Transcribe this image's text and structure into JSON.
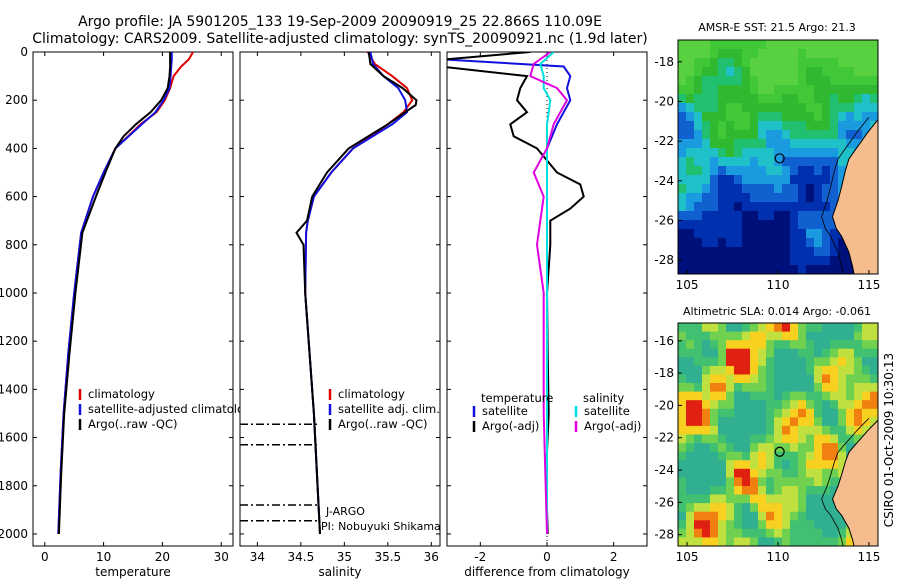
{
  "header": {
    "line1": "Argo profile: JA 5901205_133 19-Sep-2009 20090919_25 22.866S 110.09E",
    "line2": "Climatology: CARS2009. Satellite-adjusted climatology: synTS_20090921.nc (1.9d later)"
  },
  "side_label": "CSIRO 01-Oct-2009 10:30:13",
  "colors": {
    "climatology": "#e00000",
    "satellite": "#1010e0",
    "argo": "#000000",
    "salinity_sat": "#00e0e0",
    "salinity_adj": "#e000e0",
    "land": "#f5bc8e"
  },
  "chart_data": [
    {
      "type": "line",
      "id": "temperature",
      "xlabel": "temperature",
      "ylabel": "",
      "xlim": [
        -2,
        32
      ],
      "ylim": [
        2050,
        0
      ],
      "xticks": [
        0,
        10,
        20,
        30
      ],
      "yticks": [
        0,
        200,
        400,
        600,
        800,
        1000,
        1200,
        1400,
        1600,
        1800,
        2000
      ],
      "legend": {
        "placement": "lower-middle",
        "entries": [
          "climatology",
          "satellite-adjusted climatology",
          "Argo(..raw -QC)"
        ]
      },
      "series": [
        {
          "name": "climatology",
          "color": "#e00000",
          "y": [
            0,
            30,
            60,
            100,
            150,
            200,
            250,
            300,
            400,
            500,
            600,
            750,
            1000,
            1250,
            1500,
            1750,
            2000
          ],
          "x": [
            25.2,
            24.5,
            23.2,
            21.9,
            21.3,
            20.4,
            19.0,
            16.3,
            12.0,
            10.0,
            8.2,
            6.2,
            5.0,
            4.0,
            3.2,
            2.7,
            2.3
          ]
        },
        {
          "name": "satellite-adjusted climatology",
          "color": "#1010e0",
          "y": [
            0,
            30,
            60,
            100,
            150,
            200,
            250,
            300,
            400,
            500,
            600,
            750,
            1000,
            1250,
            1500,
            1750,
            2000
          ],
          "x": [
            21.6,
            21.6,
            21.5,
            21.4,
            21.2,
            20.2,
            18.8,
            16.5,
            12.0,
            10.0,
            8.2,
            6.2,
            5.0,
            4.0,
            3.2,
            2.7,
            2.3
          ]
        },
        {
          "name": "Argo(..raw -QC)",
          "color": "#000000",
          "y": [
            0,
            30,
            60,
            100,
            150,
            200,
            250,
            300,
            350,
            400,
            500,
            600,
            750,
            1000,
            1250,
            1500,
            1750,
            2000
          ],
          "x": [
            21.3,
            21.3,
            21.3,
            21.2,
            20.9,
            19.8,
            18.0,
            15.5,
            13.4,
            12.0,
            10.3,
            8.7,
            6.4,
            5.2,
            4.2,
            3.3,
            2.8,
            2.4
          ]
        }
      ]
    },
    {
      "type": "line",
      "id": "salinity",
      "xlabel": "salinity",
      "ylabel": "",
      "xlim": [
        33.8,
        36.1
      ],
      "ylim": [
        2050,
        0
      ],
      "xticks": [
        34,
        34.5,
        35,
        35.5,
        36
      ],
      "yticks": [
        0,
        200,
        400,
        600,
        800,
        1000,
        1200,
        1400,
        1600,
        1800,
        2000
      ],
      "legend": {
        "placement": "lower-middle",
        "entries": [
          "climatology",
          "satellite adj. clim.",
          "Argo(..raw -QC)"
        ]
      },
      "annotations": [
        "J-ARGO",
        "PI: Nobuyuki Shikama"
      ],
      "series": [
        {
          "name": "climatology",
          "color": "#e00000",
          "y": [
            0,
            50,
            100,
            150,
            200,
            250,
            300,
            400,
            500,
            600,
            700,
            750,
            1000,
            1500,
            2000
          ],
          "x": [
            35.27,
            35.35,
            35.55,
            35.72,
            35.78,
            35.68,
            35.5,
            35.1,
            34.85,
            34.65,
            34.58,
            34.56,
            34.55,
            34.65,
            34.72
          ]
        },
        {
          "name": "satellite adj. clim.",
          "color": "#1010e0",
          "y": [
            0,
            50,
            100,
            150,
            200,
            250,
            300,
            400,
            500,
            600,
            700,
            750,
            1000,
            1500,
            2000
          ],
          "x": [
            35.3,
            35.33,
            35.45,
            35.62,
            35.7,
            35.72,
            35.55,
            35.1,
            34.85,
            34.65,
            34.58,
            34.56,
            34.55,
            34.65,
            34.72
          ]
        },
        {
          "name": "Argo(..raw -QC)",
          "color": "#000000",
          "y": [
            0,
            50,
            100,
            150,
            200,
            220,
            250,
            300,
            400,
            500,
            600,
            700,
            750,
            800,
            1000,
            1500,
            2000
          ],
          "x": [
            35.28,
            35.3,
            35.45,
            35.67,
            35.83,
            35.82,
            35.7,
            35.5,
            35.05,
            34.8,
            34.63,
            34.57,
            34.45,
            34.53,
            34.55,
            34.65,
            34.72
          ]
        }
      ]
    },
    {
      "type": "line",
      "id": "difference",
      "xlabel": "difference from climatology",
      "ylabel": "",
      "xlim": [
        -3,
        3
      ],
      "ylim": [
        2050,
        0
      ],
      "xticks": [
        -2,
        0,
        2
      ],
      "yticks": [
        0,
        200,
        400,
        600,
        800,
        1000,
        1200,
        1400,
        1600,
        1800,
        2000
      ],
      "legend": {
        "placement": "lower-middle",
        "title_temperature": "temperature",
        "title_salinity": "salinity",
        "entries": [
          "satellite",
          "Argo(-adj)",
          "satellite",
          "Argo(-adj)"
        ]
      },
      "series": [
        {
          "name": "temperature satellite",
          "color": "#1010e0",
          "y": [
            0,
            30,
            60,
            100,
            150,
            200,
            300,
            400,
            500,
            600,
            800,
            1000,
            2000
          ],
          "x": [
            -3.6,
            -3.2,
            0.5,
            0.7,
            0.6,
            0.7,
            0.3,
            0.0,
            0.0,
            0.0,
            0.0,
            0.0,
            0.0
          ]
        },
        {
          "name": "temperature Argo(-adj)",
          "color": "#000000",
          "y": [
            0,
            30,
            60,
            100,
            150,
            200,
            250,
            300,
            350,
            400,
            500,
            550,
            600,
            650,
            700,
            800,
            1000,
            1250,
            1500,
            1750,
            2000
          ],
          "x": [
            -0.5,
            -3.0,
            -3.2,
            -0.6,
            -0.8,
            -0.9,
            -0.6,
            -1.1,
            -1.0,
            -0.3,
            0.3,
            1.0,
            1.1,
            0.7,
            0.1,
            0.1,
            0.0,
            0.02,
            0.05,
            -0.03,
            0.02
          ]
        },
        {
          "name": "salinity satellite",
          "color": "#00e0e0",
          "y": [
            0,
            50,
            100,
            150,
            200,
            300,
            400,
            500,
            700,
            1000,
            1500,
            2000
          ],
          "x": [
            0.2,
            -0.2,
            -0.1,
            -0.1,
            0.1,
            0.0,
            0.0,
            0.0,
            0.0,
            0.0,
            0.0,
            0.0
          ]
        },
        {
          "name": "salinity Argo(-adj)",
          "color": "#e000e0",
          "y": [
            0,
            50,
            100,
            150,
            200,
            250,
            300,
            400,
            500,
            600,
            700,
            800,
            1000,
            1500,
            2000
          ],
          "x": [
            0.1,
            -0.4,
            -0.5,
            0.3,
            0.6,
            0.4,
            0.2,
            0.0,
            -0.4,
            -0.1,
            -0.2,
            -0.3,
            -0.1,
            -0.1,
            0.0
          ]
        }
      ]
    },
    {
      "type": "heatmap",
      "id": "sst_map",
      "title": "AMSR-E SST: 21.5  Argo: 21.3",
      "xlim": [
        104.5,
        115.5
      ],
      "ylim": [
        -28.7,
        -16.9
      ],
      "xticks": [
        105,
        110,
        115
      ],
      "yticks": [
        -18,
        -20,
        -22,
        -24,
        -26,
        -28
      ],
      "marker": {
        "lon": 110.09,
        "lat": -22.866
      }
    },
    {
      "type": "heatmap",
      "id": "sla_map",
      "title": "Altimetric SLA: 0.014  Argo: -0.061",
      "xlim": [
        104.5,
        115.5
      ],
      "ylim": [
        -28.7,
        -14.9
      ],
      "xticks": [
        105,
        110,
        115
      ],
      "yticks": [
        -16,
        -18,
        -20,
        -22,
        -24,
        -26,
        -28
      ],
      "marker": {
        "lon": 110.09,
        "lat": -22.866
      }
    }
  ]
}
